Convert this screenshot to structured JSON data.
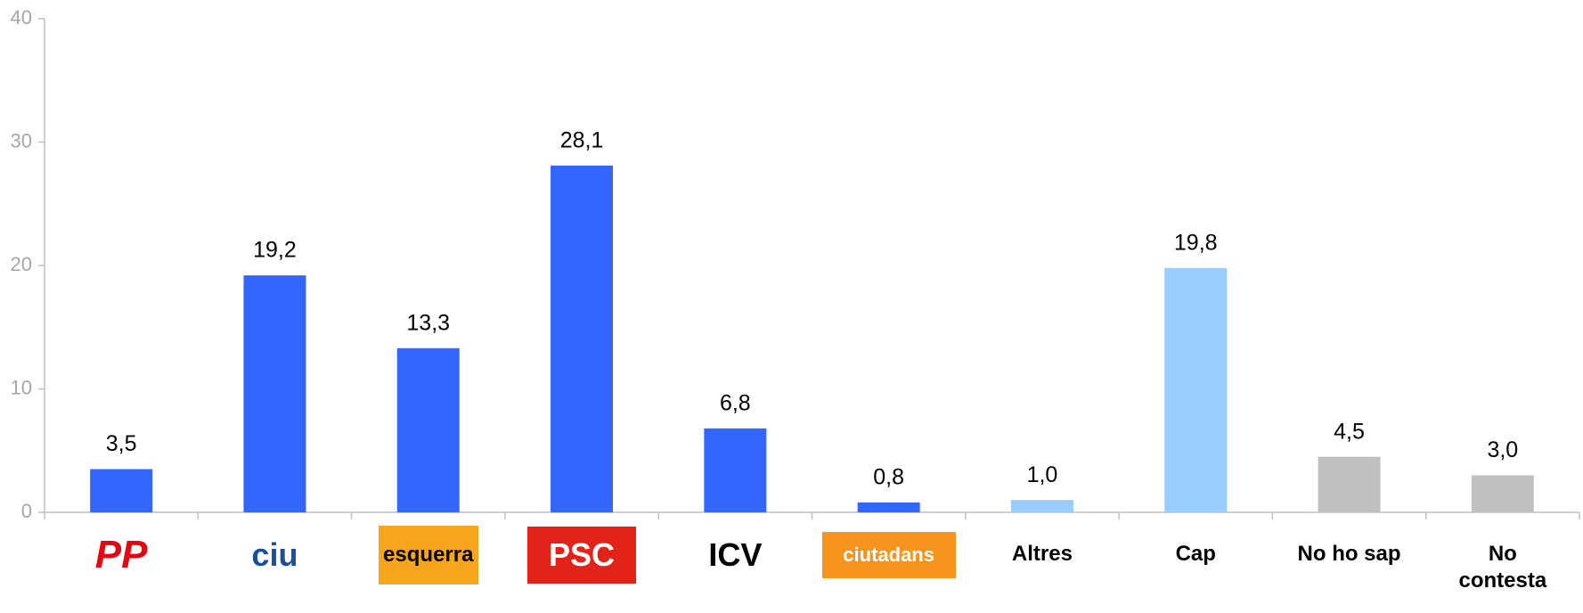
{
  "chart_data": {
    "type": "bar",
    "categories": [
      "PP",
      "ciu",
      "esquerra",
      "PSC",
      "ICV",
      "ciutadans",
      "Altres",
      "Cap",
      "No ho sap",
      "No contesta"
    ],
    "values": [
      3.5,
      19.2,
      13.3,
      28.1,
      6.8,
      0.8,
      1.0,
      19.8,
      4.5,
      3.0
    ],
    "value_labels": [
      "3,5",
      "19,2",
      "13,3",
      "28,1",
      "6,8",
      "0,8",
      "1,0",
      "19,8",
      "4,5",
      "3,0"
    ],
    "colors": [
      "#3366ff",
      "#3366ff",
      "#3366ff",
      "#3366ff",
      "#3366ff",
      "#3366ff",
      "#99ccff",
      "#99ccff",
      "#c0c0c0",
      "#c0c0c0"
    ],
    "ylim": [
      0,
      40
    ],
    "yticks": [
      0,
      10,
      20,
      30,
      40
    ],
    "grid": false
  }
}
